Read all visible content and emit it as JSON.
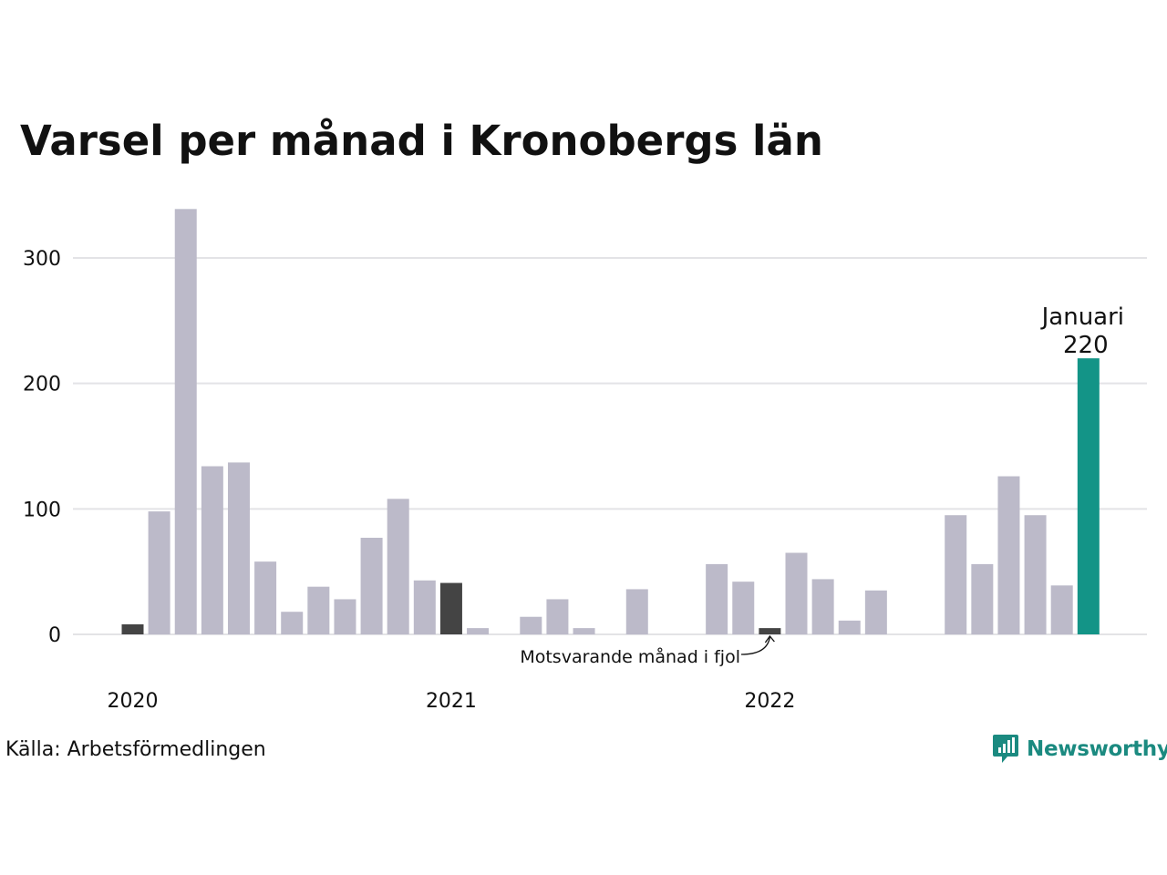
{
  "chart_data": {
    "type": "bar",
    "title": "Varsel per månad i Kronobergs län",
    "xlabel": "",
    "ylabel": "",
    "ylim": [
      0,
      340
    ],
    "yticks": [
      0,
      100,
      200,
      300
    ],
    "grid": true,
    "year_labels": [
      {
        "label": "2020",
        "index": 0
      },
      {
        "label": "2021",
        "index": 12
      },
      {
        "label": "2022",
        "index": 24
      }
    ],
    "values": [
      8,
      98,
      339,
      134,
      137,
      58,
      18,
      38,
      28,
      77,
      108,
      43,
      41,
      5,
      0,
      14,
      28,
      5,
      0,
      36,
      0,
      0,
      56,
      42,
      5,
      65,
      44,
      11,
      35,
      0,
      0,
      95,
      56,
      126,
      95,
      39,
      220
    ],
    "colors": {
      "default": "#bcbac9",
      "comparison": "#444444",
      "highlight": "#139487",
      "grid": "#e3e3e6"
    },
    "comparison_indices": [
      0,
      12,
      24
    ],
    "highlight_index": 36,
    "highlight_label": {
      "month": "Januari",
      "value": "220"
    },
    "annotation": "Motsvarande månad i fjol"
  },
  "footer": {
    "source": "Källa: Arbetsförmedlingen",
    "brand": "Newsworthy",
    "brand_icon": "newsworthy-logo-icon"
  }
}
